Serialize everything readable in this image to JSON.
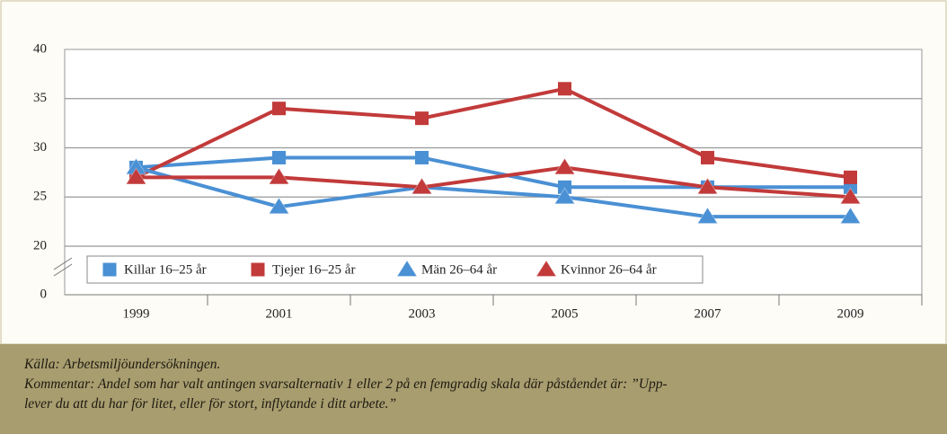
{
  "chart_data": {
    "type": "line",
    "categories": [
      "1999",
      "2001",
      "2003",
      "2005",
      "2007",
      "2009"
    ],
    "series": [
      {
        "name": "Killar 16–25 år",
        "color": "#4a90d4",
        "marker": "square",
        "values": [
          28,
          29,
          29,
          26,
          26,
          26
        ]
      },
      {
        "name": "Tjejer 16–25 år",
        "color": "#c23a3a",
        "marker": "square",
        "values": [
          27,
          34,
          33,
          36,
          29,
          27
        ]
      },
      {
        "name": "Män 26–64 år",
        "color": "#4a90d4",
        "marker": "triangle",
        "values": [
          28,
          24,
          26,
          25,
          23,
          23
        ]
      },
      {
        "name": "Kvinnor 26–64 år",
        "color": "#c23a3a",
        "marker": "triangle",
        "values": [
          27,
          27,
          26,
          28,
          26,
          25
        ]
      }
    ],
    "ylim": [
      0,
      40
    ],
    "yticks": [
      0,
      20,
      25,
      30,
      35,
      40
    ],
    "axis_break": [
      0,
      20
    ],
    "grid": true
  },
  "footer": {
    "source": "Källa: Arbetsmiljöundersökningen.",
    "comment": [
      "Kommentar: Andel som har valt antingen svarsalternativ 1 eller 2 på en femgradig skala där påståendet är: ”Upp-",
      "lever du att du har för litet, eller för stort, inflytande i ditt arbete.”"
    ]
  }
}
